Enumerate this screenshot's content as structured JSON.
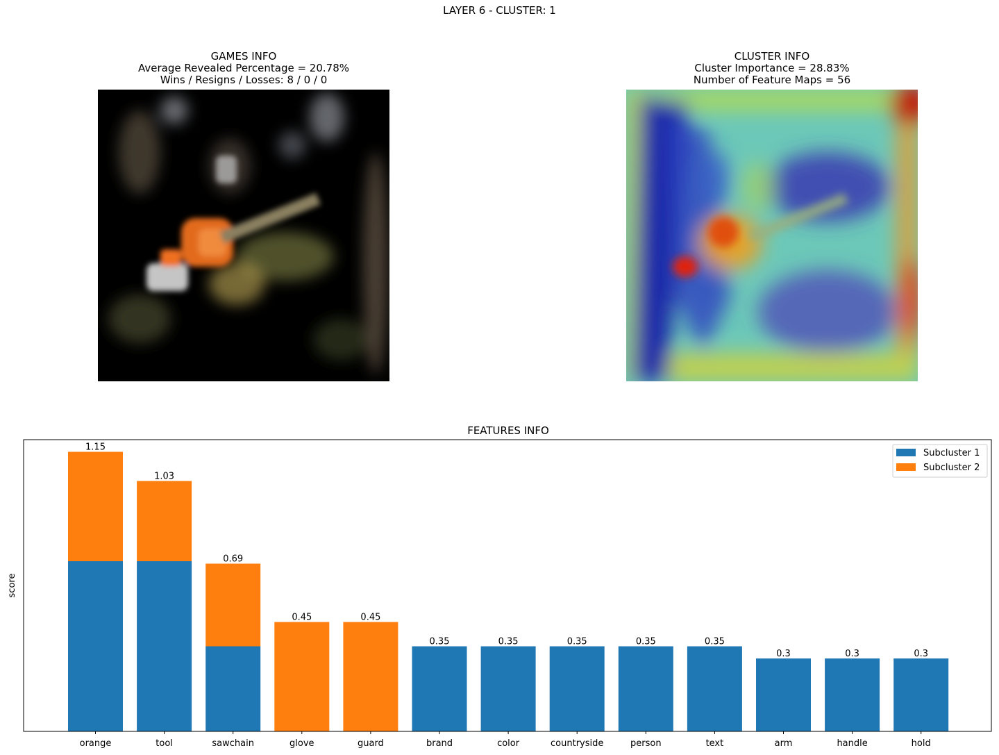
{
  "figure": {
    "title": "LAYER 6 - CLUSTER: 1"
  },
  "games_info": {
    "title": "GAMES INFO",
    "line1": "Average Revealed Percentage = 20.78%",
    "line2": "Wins / Resigns / Losses: 8 / 0 / 0"
  },
  "cluster_info": {
    "title": "CLUSTER INFO",
    "line1": "Cluster Importance = 28.83%",
    "line2": "Number of Feature Maps = 56"
  },
  "colors": {
    "subcluster1": "#1f77b4",
    "subcluster2": "#ff7f0e"
  },
  "chart_data": {
    "type": "bar",
    "stacked": true,
    "title": "FEATURES INFO",
    "xlabel": "",
    "ylabel": "score",
    "ylim": [
      0,
      1.2
    ],
    "y_ticks_visible": false,
    "grid": false,
    "legend": "top-right",
    "categories": [
      "orange",
      "tool",
      "sawchain",
      "glove",
      "guard",
      "brand",
      "color",
      "countryside",
      "person",
      "text",
      "arm",
      "handle",
      "hold"
    ],
    "series": [
      {
        "name": "Subcluster 1",
        "values": [
          0.7,
          0.7,
          0.35,
          0,
          0,
          0.35,
          0.35,
          0.35,
          0.35,
          0.35,
          0.3,
          0.3,
          0.3
        ]
      },
      {
        "name": "Subcluster 2",
        "values": [
          0.45,
          0.33,
          0.34,
          0.45,
          0.45,
          0,
          0,
          0,
          0,
          0,
          0,
          0,
          0
        ]
      }
    ],
    "totals": [
      "1.15",
      "1.03",
      "0.69",
      "0.45",
      "0.45",
      "0.35",
      "0.35",
      "0.35",
      "0.35",
      "0.35",
      "0.3",
      "0.3",
      "0.3"
    ]
  }
}
